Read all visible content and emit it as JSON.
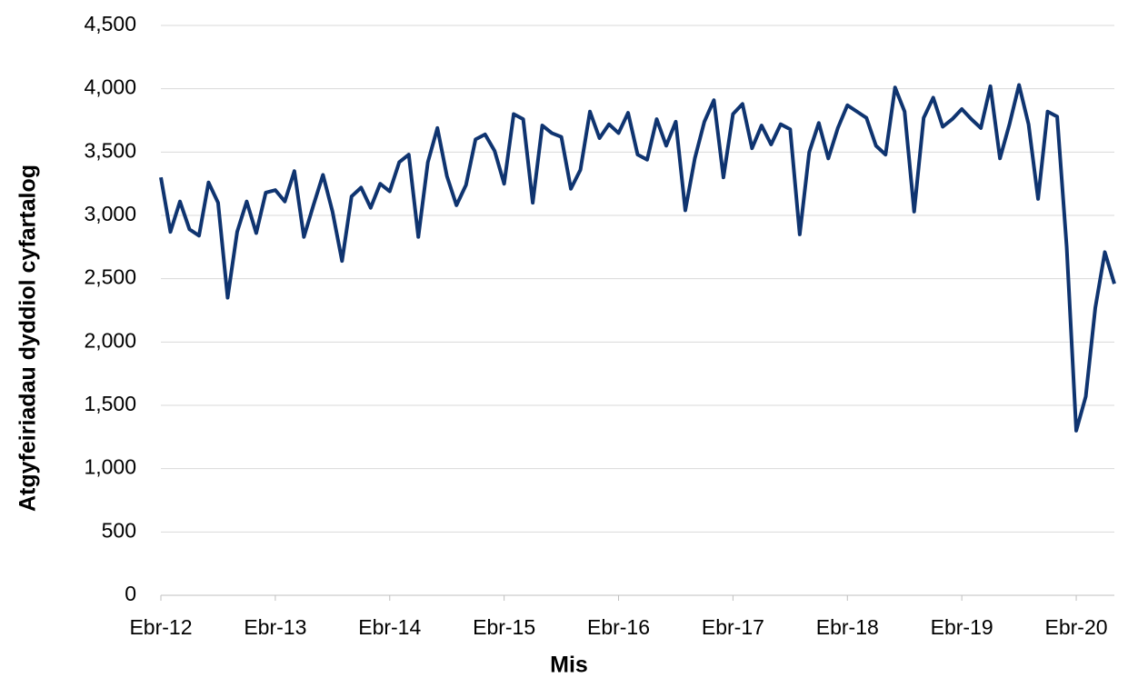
{
  "chart_data": {
    "type": "line",
    "x_label": "Mis",
    "y_label": "Atgyfeiriadau dyddiol cyfartalog",
    "categories": [
      "Ebr-12",
      null,
      null,
      null,
      null,
      null,
      null,
      null,
      null,
      null,
      null,
      null,
      "Ebr-13",
      null,
      null,
      null,
      null,
      null,
      null,
      null,
      null,
      null,
      null,
      null,
      "Ebr-14",
      null,
      null,
      null,
      null,
      null,
      null,
      null,
      null,
      null,
      null,
      null,
      "Ebr-15",
      null,
      null,
      null,
      null,
      null,
      null,
      null,
      null,
      null,
      null,
      null,
      "Ebr-16",
      null,
      null,
      null,
      null,
      null,
      null,
      null,
      null,
      null,
      null,
      null,
      "Ebr-17",
      null,
      null,
      null,
      null,
      null,
      null,
      null,
      null,
      null,
      null,
      null,
      "Ebr-18",
      null,
      null,
      null,
      null,
      null,
      null,
      null,
      null,
      null,
      null,
      null,
      "Ebr-19",
      null,
      null,
      null,
      null,
      null,
      null,
      null,
      null,
      null,
      null,
      null,
      "Ebr-20",
      null,
      null,
      null,
      null
    ],
    "series": [
      {
        "color": "#0f3470",
        "values": [
          3300,
          2870,
          3110,
          2890,
          2840,
          3260,
          3100,
          2350,
          2870,
          3110,
          2860,
          3180,
          3200,
          3110,
          3350,
          2830,
          3080,
          3320,
          3030,
          2640,
          3150,
          3220,
          3060,
          3250,
          3190,
          3420,
          3480,
          2830,
          3420,
          3690,
          3310,
          3080,
          3240,
          3600,
          3640,
          3510,
          3250,
          3800,
          3760,
          3100,
          3710,
          3650,
          3620,
          3210,
          3360,
          3820,
          3610,
          3720,
          3650,
          3810,
          3480,
          3440,
          3760,
          3550,
          3740,
          3040,
          3450,
          3740,
          3910,
          3300,
          3800,
          3880,
          3530,
          3710,
          3560,
          3720,
          3680,
          2850,
          3500,
          3730,
          3450,
          3690,
          3870,
          3820,
          3770,
          3550,
          3480,
          4010,
          3820,
          3030,
          3770,
          3930,
          3700,
          3760,
          3840,
          3760,
          3690,
          4020,
          3450,
          3720,
          4030,
          3720,
          3130,
          3820,
          3780,
          2750,
          1300,
          1570,
          2270,
          2710,
          2460
        ]
      }
    ],
    "ylim": [
      0,
      4500
    ],
    "yticks": [
      0,
      500,
      {
        "value": 1000,
        "label": "1,000"
      },
      {
        "value": 1500,
        "label": "1,500"
      },
      {
        "value": 2000,
        "label": "2,000"
      },
      {
        "value": 2500,
        "label": "2,500"
      },
      {
        "value": 3000,
        "label": "3,000"
      },
      {
        "value": 3500,
        "label": "3,500"
      },
      {
        "value": 4000,
        "label": "4,000"
      },
      {
        "value": 4500,
        "label": "4,500"
      }
    ],
    "grid": true
  }
}
